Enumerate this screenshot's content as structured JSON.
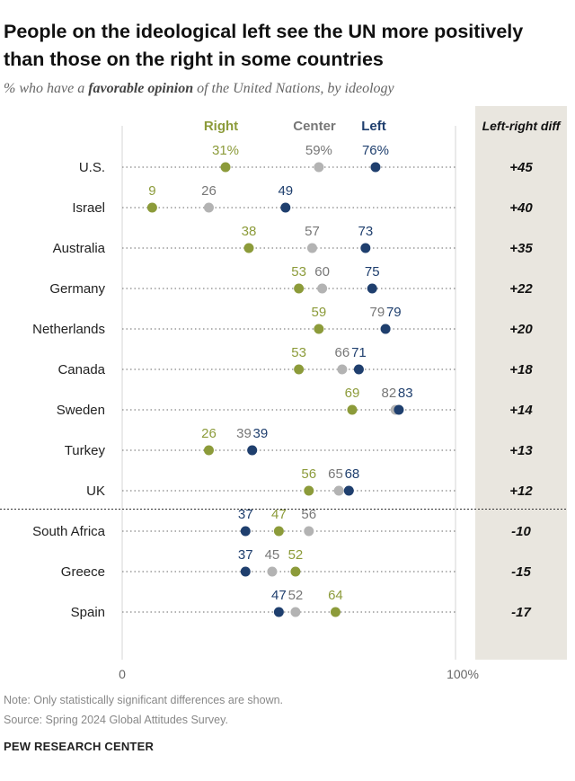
{
  "header": {
    "title": "People on the ideological left see the UN more positively than those on the right in some countries",
    "subtitle_pre": "% who have a ",
    "subtitle_em": "favorable opinion",
    "subtitle_post": " of the United Nations, by ideology"
  },
  "diff_header": "Left-right diff",
  "colors": {
    "right": "#8c9b3a",
    "center": "#b3b3b3",
    "left": "#1f3f6e",
    "center_label": "#777777"
  },
  "chart_data": {
    "type": "dot",
    "xlim": [
      0,
      100
    ],
    "xticks": [
      "0",
      "100%"
    ],
    "legend": [
      "Right",
      "Center",
      "Left"
    ],
    "series": [
      {
        "name": "Right",
        "key": "right"
      },
      {
        "name": "Center",
        "key": "center"
      },
      {
        "name": "Left",
        "key": "left"
      }
    ],
    "rows": [
      {
        "country": "U.S.",
        "right": 31,
        "center": 59,
        "left": 76,
        "labels": {
          "right": "31%",
          "center": "59%",
          "left": "76%"
        },
        "diff": "+45"
      },
      {
        "country": "Israel",
        "right": 9,
        "center": 26,
        "left": 49,
        "diff": "+40"
      },
      {
        "country": "Australia",
        "right": 38,
        "center": 57,
        "left": 73,
        "diff": "+35"
      },
      {
        "country": "Germany",
        "right": 53,
        "center": 60,
        "left": 75,
        "diff": "+22"
      },
      {
        "country": "Netherlands",
        "right": 59,
        "center": 79,
        "left": 79,
        "diff": "+20"
      },
      {
        "country": "Canada",
        "right": 53,
        "center": 66,
        "left": 71,
        "diff": "+18"
      },
      {
        "country": "Sweden",
        "right": 69,
        "center": 82,
        "left": 83,
        "diff": "+14"
      },
      {
        "country": "Turkey",
        "right": 26,
        "center": 39,
        "left": 39,
        "diff": "+13"
      },
      {
        "country": "UK",
        "right": 56,
        "center": 65,
        "left": 68,
        "diff": "+12"
      },
      {
        "country": "South Africa",
        "right": 47,
        "center": 56,
        "left": 37,
        "diff": "-10"
      },
      {
        "country": "Greece",
        "right": 52,
        "center": 45,
        "left": 37,
        "diff": "-15"
      },
      {
        "country": "Spain",
        "right": 64,
        "center": 52,
        "left": 47,
        "diff": "-17"
      }
    ]
  },
  "footer": {
    "note": "Note: Only statistically significant differences are shown.",
    "source": "Source: Spring 2024 Global Attitudes Survey.",
    "brand": "PEW RESEARCH CENTER"
  }
}
